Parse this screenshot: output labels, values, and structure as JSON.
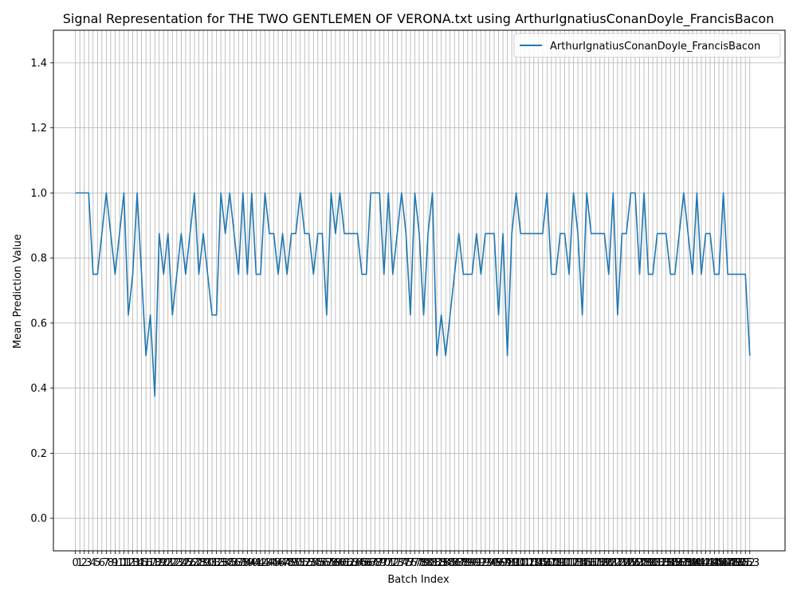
{
  "chart_data": {
    "type": "line",
    "title": "Signal Representation for THE TWO GENTLEMEN OF VERONA.txt using ArthurIgnatiusConanDoyle_FrancisBacon",
    "xlabel": "Batch Index",
    "ylabel": "Mean Prediction Value",
    "xlim": [
      -5,
      161
    ],
    "ylim": [
      -0.1,
      1.5
    ],
    "yticks": [
      0.0,
      0.2,
      0.4,
      0.6,
      0.8,
      1.0,
      1.2,
      1.4
    ],
    "grid": true,
    "legend_position": "top-right",
    "colors": {
      "series": "#1f77b4",
      "grid": "#b0b0b0"
    },
    "x_start": 0,
    "series": [
      {
        "name": "ArthurIgnatiusConanDoyle_FrancisBacon",
        "values": [
          1.0,
          1.0,
          1.0,
          1.0,
          0.75,
          0.75,
          0.875,
          1.0,
          0.875,
          0.75,
          0.875,
          1.0,
          0.625,
          0.75,
          1.0,
          0.75,
          0.5,
          0.625,
          0.375,
          0.875,
          0.75,
          0.875,
          0.625,
          0.75,
          0.875,
          0.75,
          0.875,
          1.0,
          0.75,
          0.875,
          0.75,
          0.625,
          0.625,
          1.0,
          0.875,
          1.0,
          0.875,
          0.75,
          1.0,
          0.75,
          1.0,
          0.75,
          0.75,
          1.0,
          0.875,
          0.875,
          0.75,
          0.875,
          0.75,
          0.875,
          0.875,
          1.0,
          0.875,
          0.875,
          0.75,
          0.875,
          0.875,
          0.625,
          1.0,
          0.875,
          1.0,
          0.875,
          0.875,
          0.875,
          0.875,
          0.75,
          0.75,
          1.0,
          1.0,
          1.0,
          0.75,
          1.0,
          0.75,
          0.875,
          1.0,
          0.875,
          0.625,
          1.0,
          0.875,
          0.625,
          0.875,
          1.0,
          0.5,
          0.625,
          0.5,
          0.625,
          0.75,
          0.875,
          0.75,
          0.75,
          0.75,
          0.875,
          0.75,
          0.875,
          0.875,
          0.875,
          0.625,
          0.875,
          0.5,
          0.875,
          1.0,
          0.875,
          0.875,
          0.875,
          0.875,
          0.875,
          0.875,
          1.0,
          0.75,
          0.75,
          0.875,
          0.875,
          0.75,
          1.0,
          0.875,
          0.625,
          1.0,
          0.875,
          0.875,
          0.875,
          0.875,
          0.75,
          1.0,
          0.625,
          0.875,
          0.875,
          1.0,
          1.0,
          0.75,
          1.0,
          0.75,
          0.75,
          0.875,
          0.875,
          0.875,
          0.75,
          0.75,
          0.875,
          1.0,
          0.875,
          0.75,
          1.0,
          0.75,
          0.875,
          0.875,
          0.75,
          0.75,
          1.0,
          0.75,
          0.75,
          0.75,
          0.75,
          0.75,
          0.5
        ]
      }
    ]
  }
}
